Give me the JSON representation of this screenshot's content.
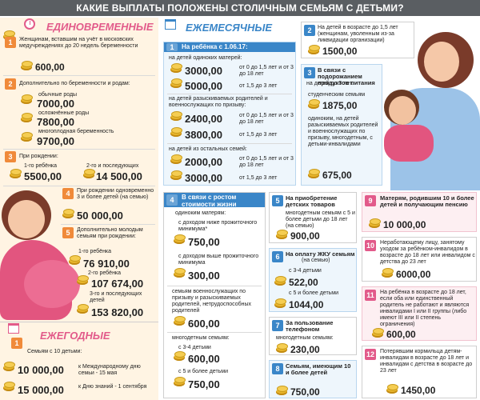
{
  "header": {
    "title": "КАКИЕ ВЫПЛАТЫ ПОЛОЖЕНЫ СТОЛИЧНЫМ СЕМЬЯМ С ДЕТЬМИ?"
  },
  "sections": {
    "one_time": "ЕДИНОВРЕМЕННЫЕ",
    "monthly": "ЕЖЕМЕСЯЧНЫЕ",
    "yearly": "ЕЖЕГОДНЫЕ"
  },
  "left": {
    "b1": {
      "num": "1",
      "text": "Женщинам, вставшим на учёт в московских медучреждениях до 20 недель беременности",
      "amount": "600,00"
    },
    "b2": {
      "num": "2",
      "text": "Дополнительно по беременности и родам:",
      "rows": [
        {
          "label": "обычные роды",
          "amount": "7000,00"
        },
        {
          "label": "осложнённые роды",
          "amount": "7800,00"
        },
        {
          "label": "многоплодная беременность",
          "amount": "9700,00"
        }
      ]
    },
    "b3": {
      "num": "3",
      "text": "При рождении:",
      "c1_label": "1-го ребёнка",
      "c1_amount": "5500,00",
      "c2_label": "2-го и последующих",
      "c2_amount": "14 500,00"
    },
    "b4": {
      "num": "4",
      "text": "При рождении одновременно 3 и более детей (на семью)",
      "amount": "50 000,00"
    },
    "b5": {
      "num": "5",
      "text": "Дополнительно молодым семьям при рождении:",
      "rows": [
        {
          "label": "1-го ребёнка",
          "amount": "76 910,00"
        },
        {
          "label": "2-го ребёнка",
          "amount": "107 674,00"
        },
        {
          "label": "3-го и последующих детей",
          "amount": "153 820,00"
        }
      ]
    },
    "y1": {
      "num": "1",
      "text": "Семьям с 10 детьми:",
      "rows": [
        {
          "amount": "10 000,00",
          "label": "к Международному дню семьи - 15 мая"
        },
        {
          "amount": "15 000,00",
          "label": "к Дню знаний - 1 сентября"
        }
      ]
    }
  },
  "mid": {
    "m1": {
      "num": "1",
      "title": "На ребёнка с 1.06.17:",
      "groups": [
        {
          "title": "на детей одиноких матерей:",
          "rows": [
            {
              "amount": "3000,00",
              "label": "от 0 до 1,5 лет и от 3 до 18 лет"
            },
            {
              "amount": "5000,00",
              "label": "от 1,5 до 3 лет"
            }
          ]
        },
        {
          "title": "на детей разыскиваемых родителей и военнослужащих по призыву:",
          "rows": [
            {
              "amount": "2400,00",
              "label": "от 0 до 1,5 лет и от 3 до 18 лет"
            },
            {
              "amount": "3800,00",
              "label": "от 1,5 до 3 лет"
            }
          ]
        },
        {
          "title": "на детей из остальных семей:",
          "rows": [
            {
              "amount": "2000,00",
              "label": "от 0 до 1,5 лет и от 3 до 18 лет"
            },
            {
              "amount": "3000,00",
              "label": "от 1,5 до 3 лет"
            }
          ]
        }
      ]
    },
    "m2": {
      "num": "2",
      "text": "На детей в возрасте до 1,5 лет (женщинам, уволенным из-за ликвидации организации)",
      "amount": "1500,00"
    },
    "m3": {
      "num": "3",
      "title": "В связи с подорожанием продуктов питания",
      "text": "на детей до 3 лет:",
      "r1_label": "студенческим семьям",
      "r1_amount": "1875,00",
      "r2_label": "одиноким, на детей разыскиваемых родителей и военнослужащих по призыву, многодетным, с детьми-инвалидами",
      "r2_amount": "675,00"
    },
    "m4": {
      "num": "4",
      "title": "В связи с ростом стоимости жизни",
      "sub": "одиноким матерям:",
      "r1_label": "с доходом ниже прожиточного минимума*",
      "r1_amount": "750,00",
      "r2_label": "с доходом выше прожиточного минимума",
      "r2_amount": "300,00",
      "r3_label": "семьям военнослужащих по призыву и разыскиваемых родителей, нетрудоспособных родителей",
      "r3_amount": "600,00",
      "r4_label": "многодетным семьям:",
      "r5_label": "с 3-4 детьми",
      "r5_amount": "600,00",
      "r6_label": "с 5 и более детьми",
      "r6_amount": "750,00"
    },
    "m5": {
      "num": "5",
      "title": "На приобретение детских товаров",
      "text": "многодетным семьям с 5 и более детьми до 18 лет (на семью)",
      "amount": "900,00"
    },
    "m6": {
      "num": "6",
      "title": "На оплату ЖКУ семьям",
      "title2": "(на семью)",
      "r1_label": "с 3-4 детьми",
      "r1_amount": "522,00",
      "r2_label": "с 5 и более детьми",
      "r2_amount": "1044,00"
    },
    "m7": {
      "num": "7",
      "title": "За пользование телефоном",
      "text": "многодетным семьям:",
      "amount": "230,00"
    },
    "m8": {
      "num": "8",
      "title": "Семьям, имеющим 10 и более детей",
      "amount": "750,00"
    },
    "r9": {
      "num": "9",
      "text": "Матерям, родившим 10 и более детей и получающим пенсию",
      "amount": "10 000,00"
    },
    "r10": {
      "num": "10",
      "text": "Неработающему лицу, занятому уходом за ребёнком-инвалидом в возрасте до 18 лет или инвалидом с детства до 23 лет",
      "amount": "6000,00"
    },
    "r11": {
      "num": "11",
      "text": "На ребёнка в возрасте до 18 лет, если оба или единственный родитель не работают и являются инвалидами I или II группы (либо имеют III или II степень ограничения)",
      "amount": "600,00"
    },
    "r12": {
      "num": "12",
      "text": "Потерявшим кормильца детям-инвалидам в возрасте до 18 лет и инвалидам с детства в возрасте до 23 лет",
      "amount": "1450,00"
    }
  },
  "colors": {
    "pink": "#e25a8a",
    "blue": "#3a86c8",
    "orange": "#f08a3a",
    "coin": "#e8b52c",
    "left_bg": "#fff4e3"
  },
  "icons": [
    "clock-icon",
    "calendar-icon",
    "coin-stack-icon"
  ]
}
